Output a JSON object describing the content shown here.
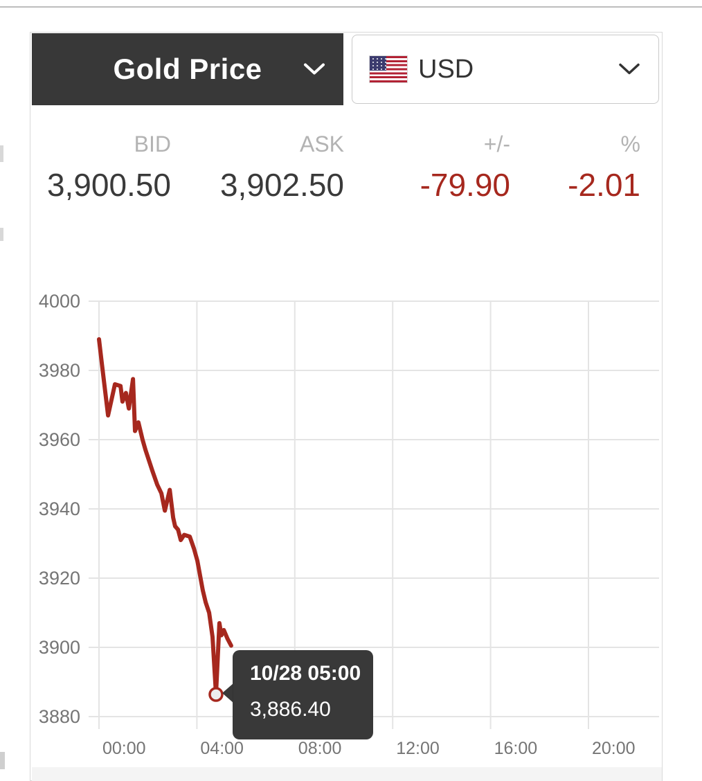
{
  "header": {
    "metal_selector": {
      "label": "Gold Price"
    },
    "currency_selector": {
      "value": "USD",
      "flag": "us-flag"
    }
  },
  "quote": {
    "columns": [
      {
        "label": "BID",
        "value": "3,900.50",
        "negative": false
      },
      {
        "label": "ASK",
        "value": "3,902.50",
        "negative": false
      },
      {
        "label": "+/-",
        "value": "-79.90",
        "negative": true
      },
      {
        "label": "%",
        "value": "-2.01",
        "negative": true
      }
    ]
  },
  "chart_data": {
    "type": "line",
    "title": "",
    "legend": "none",
    "grid": true,
    "ylim": [
      3880,
      4000
    ],
    "yticks": [
      4000,
      3980,
      3960,
      3940,
      3920,
      3900,
      3880
    ],
    "xticks": [
      {
        "hour": 0,
        "label": "00:00"
      },
      {
        "hour": 4,
        "label": "04:00"
      },
      {
        "hour": 8,
        "label": "08:00"
      },
      {
        "hour": 12,
        "label": "12:00"
      },
      {
        "hour": 16,
        "label": "16:00"
      },
      {
        "hour": 20,
        "label": "20:00"
      }
    ],
    "series": [
      {
        "name": "Gold Price USD",
        "points": [
          [
            0.0,
            3989
          ],
          [
            0.1,
            3983
          ],
          [
            0.37,
            3967
          ],
          [
            0.65,
            3976
          ],
          [
            0.88,
            3975.5
          ],
          [
            0.96,
            3971
          ],
          [
            1.1,
            3973.5
          ],
          [
            1.22,
            3969
          ],
          [
            1.39,
            3977.5
          ],
          [
            1.47,
            3962.5
          ],
          [
            1.61,
            3965
          ],
          [
            1.78,
            3960
          ],
          [
            1.9,
            3957
          ],
          [
            2.18,
            3951
          ],
          [
            2.38,
            3947
          ],
          [
            2.55,
            3944.5
          ],
          [
            2.69,
            3939.5
          ],
          [
            2.89,
            3945.5
          ],
          [
            3.03,
            3937.5
          ],
          [
            3.11,
            3935
          ],
          [
            3.23,
            3934
          ],
          [
            3.34,
            3931
          ],
          [
            3.48,
            3932.5
          ],
          [
            3.71,
            3932
          ],
          [
            3.88,
            3928.5
          ],
          [
            4.02,
            3925
          ],
          [
            4.24,
            3916.5
          ],
          [
            4.36,
            3913
          ],
          [
            4.5,
            3910
          ],
          [
            4.64,
            3903
          ],
          [
            4.78,
            3886.4
          ],
          [
            4.92,
            3907
          ],
          [
            5.0,
            3903.5
          ],
          [
            5.1,
            3905
          ],
          [
            5.25,
            3902.5
          ],
          [
            5.4,
            3900.5
          ]
        ]
      }
    ],
    "marker": {
      "hour": 4.78,
      "value": 3886.4
    },
    "tooltip": {
      "date_time": "10/28 05:00",
      "value": "3,886.40"
    }
  },
  "colors": {
    "accent_red": "#a6281e",
    "dark": "#383838",
    "grid": "#e4e4e4",
    "axis_text": "#757575",
    "label_gray": "#b3b3b3",
    "border": "#d9d9d9",
    "marker_fill": "#ededed",
    "flag_red": "#b22234",
    "flag_blue": "#3c3b6e"
  }
}
